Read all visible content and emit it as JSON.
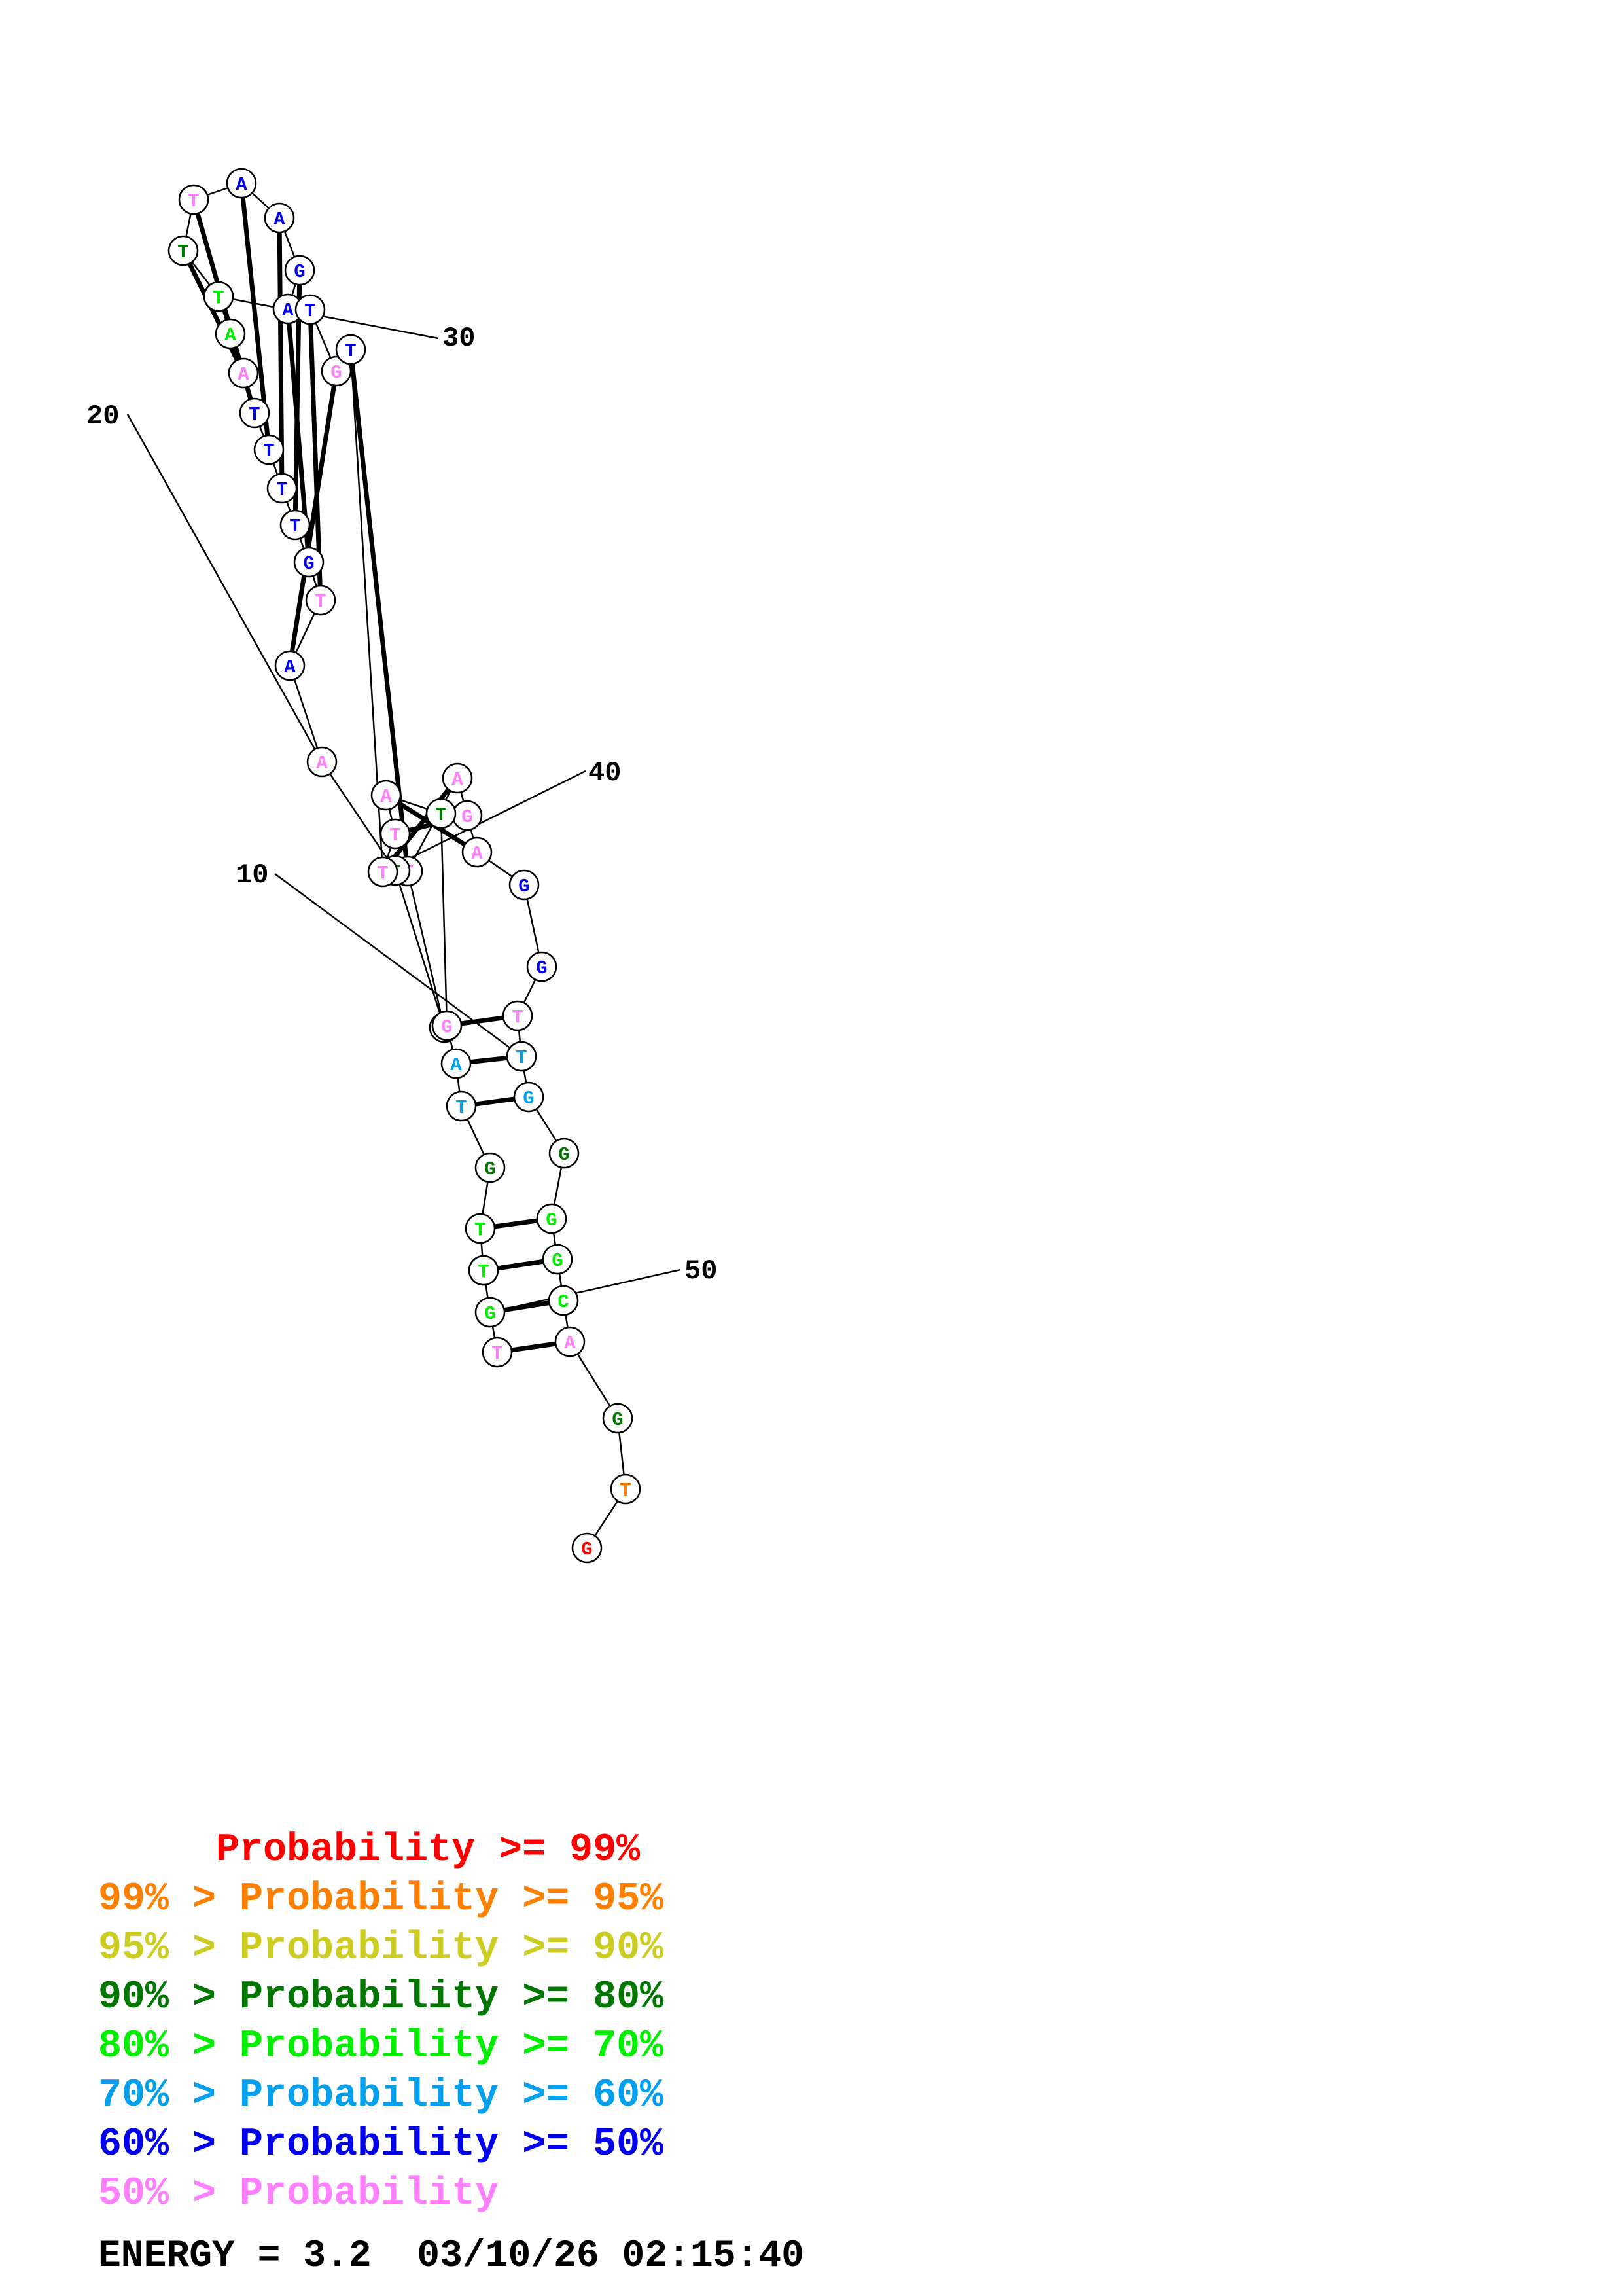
{
  "colors": {
    "p99": "#ff0000",
    "p95": "#ff8000",
    "p90": "#cccc22",
    "p80": "#007700",
    "p70": "#00ee00",
    "p60": "#00a0ee",
    "p50": "#0000ee",
    "plow": "#ff80ff"
  },
  "sequence": [
    {
      "n": 1,
      "base": "G",
      "prob": "p99"
    },
    {
      "n": 2,
      "base": "T",
      "prob": "p95"
    },
    {
      "n": 3,
      "base": "G",
      "prob": "p80"
    },
    {
      "n": 4,
      "base": "A",
      "prob": "plow"
    },
    {
      "n": 5,
      "base": "C",
      "prob": "p70"
    },
    {
      "n": 6,
      "base": "G",
      "prob": "p70"
    },
    {
      "n": 7,
      "base": "G",
      "prob": "p70"
    },
    {
      "n": 8,
      "base": "G",
      "prob": "p80"
    },
    {
      "n": 9,
      "base": "G",
      "prob": "p60"
    },
    {
      "n": 10,
      "base": "T",
      "prob": "p60"
    },
    {
      "n": 11,
      "base": "T",
      "prob": "plow"
    },
    {
      "n": 12,
      "base": "G",
      "prob": "p50"
    },
    {
      "n": 13,
      "base": "G",
      "prob": "p50"
    },
    {
      "n": 14,
      "base": "A",
      "prob": "plow"
    },
    {
      "n": 15,
      "base": "G",
      "prob": "plow"
    },
    {
      "n": 16,
      "base": "A",
      "prob": "plow"
    },
    {
      "n": 17,
      "base": "T",
      "prob": "plow"
    },
    {
      "n": 18,
      "base": "T",
      "prob": "p80"
    },
    {
      "n": 19,
      "base": "T",
      "prob": "p80"
    },
    {
      "n": 20,
      "base": "A",
      "prob": "plow"
    },
    {
      "n": 21,
      "base": "A",
      "prob": "p50"
    },
    {
      "n": 22,
      "base": "T",
      "prob": "plow"
    },
    {
      "n": 23,
      "base": "G",
      "prob": "p50"
    },
    {
      "n": 24,
      "base": "T",
      "prob": "p50"
    },
    {
      "n": 25,
      "base": "T",
      "prob": "p50"
    },
    {
      "n": 26,
      "base": "T",
      "prob": "p50"
    },
    {
      "n": 27,
      "base": "T",
      "prob": "p50"
    },
    {
      "n": 28,
      "base": "A",
      "prob": "plow"
    },
    {
      "n": 29,
      "base": "A",
      "prob": "p70"
    },
    {
      "n": 30,
      "base": "T",
      "prob": "p70"
    },
    {
      "n": 31,
      "base": "T",
      "prob": "p80"
    },
    {
      "n": 32,
      "base": "T",
      "prob": "plow"
    },
    {
      "n": 33,
      "base": "A",
      "prob": "p50"
    },
    {
      "n": 34,
      "base": "A",
      "prob": "p50"
    },
    {
      "n": 35,
      "base": "G",
      "prob": "p50"
    },
    {
      "n": 36,
      "base": "A",
      "prob": "p50"
    },
    {
      "n": 37,
      "base": "T",
      "prob": "p50"
    },
    {
      "n": 38,
      "base": "G",
      "prob": "plow"
    },
    {
      "n": 39,
      "base": "T",
      "prob": "p50"
    },
    {
      "n": 40,
      "base": "T",
      "prob": "plow"
    },
    {
      "n": 41,
      "base": "T",
      "prob": "plow"
    },
    {
      "n": 42,
      "base": "A",
      "prob": "plow"
    },
    {
      "n": 43,
      "base": "T",
      "prob": "p80"
    },
    {
      "n": 44,
      "base": "G",
      "prob": "plow"
    },
    {
      "n": 45,
      "base": "A",
      "prob": "p60"
    },
    {
      "n": 46,
      "base": "T",
      "prob": "p60"
    },
    {
      "n": 47,
      "base": "G",
      "prob": "p80"
    },
    {
      "n": 48,
      "base": "T",
      "prob": "p70"
    },
    {
      "n": 49,
      "base": "T",
      "prob": "p70"
    },
    {
      "n": 50,
      "base": "G",
      "prob": "p70"
    },
    {
      "n": 51,
      "base": "T",
      "prob": "plow"
    }
  ],
  "pairs": [
    [
      4,
      51
    ],
    [
      5,
      50
    ],
    [
      6,
      49
    ],
    [
      7,
      48
    ],
    [
      9,
      46
    ],
    [
      10,
      45
    ],
    [
      11,
      44
    ],
    [
      14,
      42
    ],
    [
      15,
      41
    ],
    [
      16,
      40
    ],
    [
      17,
      39
    ],
    [
      21,
      38
    ],
    [
      22,
      37
    ],
    [
      23,
      36
    ],
    [
      24,
      35
    ],
    [
      25,
      34
    ],
    [
      26,
      33
    ],
    [
      27,
      32
    ],
    [
      28,
      31
    ]
  ],
  "tick_labels": [
    "10",
    "20",
    "30",
    "40",
    "50"
  ],
  "legend": [
    {
      "text": "     Probability >= 99%",
      "prob": "p99"
    },
    {
      "text": "99% > Probability >= 95%",
      "prob": "p95"
    },
    {
      "text": "95% > Probability >= 90%",
      "prob": "p90"
    },
    {
      "text": "90% > Probability >= 80%",
      "prob": "p80"
    },
    {
      "text": "80% > Probability >= 70%",
      "prob": "p70"
    },
    {
      "text": "70% > Probability >= 60%",
      "prob": "p60"
    },
    {
      "text": "60% > Probability >= 50%",
      "prob": "p50"
    },
    {
      "text": "50% > Probability",
      "prob": "plow"
    }
  ],
  "energy_line": "ENERGY = 3.2  03/10/26 02:15:40"
}
